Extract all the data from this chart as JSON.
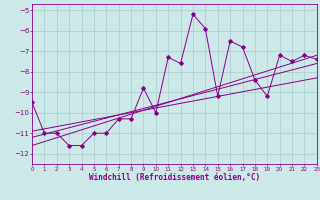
{
  "xlabel": "Windchill (Refroidissement éolien,°C)",
  "bg_color": "#cce8e8",
  "grid_color": "#aacccc",
  "line_color": "#880088",
  "xlim": [
    0,
    23
  ],
  "ylim": [
    -12.5,
    -4.7
  ],
  "yticks": [
    -12,
    -11,
    -10,
    -9,
    -8,
    -7,
    -6,
    -5
  ],
  "xticks": [
    0,
    1,
    2,
    3,
    4,
    5,
    6,
    7,
    8,
    9,
    10,
    11,
    12,
    13,
    14,
    15,
    16,
    17,
    18,
    19,
    20,
    21,
    22,
    23
  ],
  "main_x": [
    0,
    1,
    2,
    3,
    4,
    5,
    6,
    7,
    8,
    9,
    10,
    11,
    12,
    13,
    14,
    15,
    16,
    17,
    18,
    19,
    20,
    21,
    22,
    23
  ],
  "main_y": [
    -9.5,
    -11.0,
    -11.0,
    -11.6,
    -11.6,
    -11.0,
    -11.0,
    -10.3,
    -10.3,
    -8.8,
    -10.0,
    -7.3,
    -7.6,
    -5.2,
    -5.9,
    -9.2,
    -6.5,
    -6.8,
    -8.4,
    -9.2,
    -7.2,
    -7.5,
    -7.2,
    -7.4
  ],
  "line1_x": [
    0,
    23
  ],
  "line1_y": [
    -11.6,
    -7.2
  ],
  "line2_x": [
    0,
    23
  ],
  "line2_y": [
    -11.2,
    -7.6
  ],
  "line3_x": [
    0,
    23
  ],
  "line3_y": [
    -10.9,
    -8.3
  ]
}
